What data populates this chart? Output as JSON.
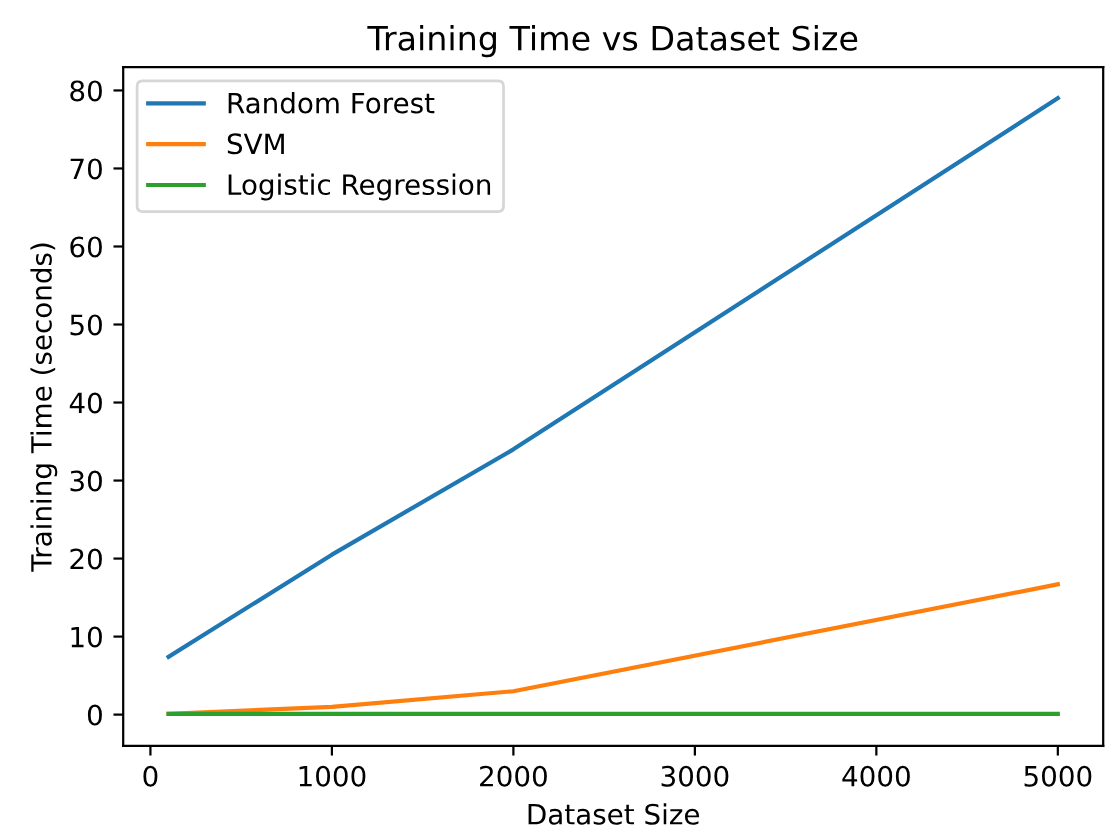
{
  "chart_data": {
    "type": "line",
    "title": "Training Time vs Dataset Size",
    "xlabel": "Dataset Size",
    "ylabel": "Training Time (seconds)",
    "x": [
      100,
      1000,
      2000,
      5000
    ],
    "series": [
      {
        "name": "Random Forest",
        "color": "#1f77b4",
        "values": [
          7.4,
          20.5,
          34,
          79
        ]
      },
      {
        "name": "SVM",
        "color": "#ff7f0e",
        "values": [
          0.1,
          1,
          3,
          16.7
        ]
      },
      {
        "name": "Logistic Regression",
        "color": "#2ca02c",
        "values": [
          0.1,
          0.1,
          0.1,
          0.1
        ]
      }
    ],
    "xlim": [
      -150,
      5250
    ],
    "ylim": [
      -4,
      83
    ],
    "xticks": [
      0,
      1000,
      2000,
      3000,
      4000,
      5000
    ],
    "yticks": [
      0,
      10,
      20,
      30,
      40,
      50,
      60,
      70,
      80
    ],
    "legend": "top left",
    "grid": false
  }
}
